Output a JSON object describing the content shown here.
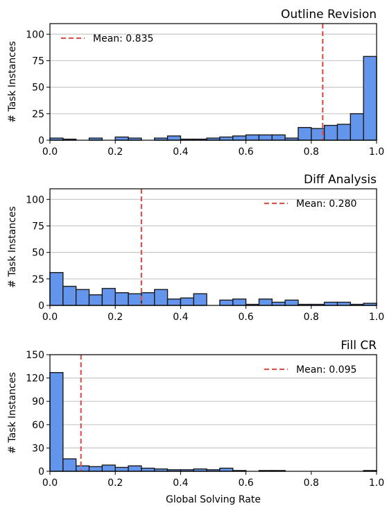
{
  "chart_data": [
    {
      "type": "bar",
      "title": "Outline Revision",
      "ylabel": "# Task Instances",
      "xlabel": "",
      "xlim": [
        0,
        1
      ],
      "ylim": [
        0,
        110
      ],
      "xticks": [
        "0.0",
        "0.2",
        "0.4",
        "0.6",
        "0.8",
        "1.0"
      ],
      "yticks": [
        0,
        25,
        50,
        75,
        100
      ],
      "bin_width": 0.04,
      "values": [
        2,
        1,
        0,
        2,
        0,
        3,
        2,
        0,
        2,
        4,
        1,
        1,
        2,
        3,
        4,
        5,
        5,
        5,
        2,
        12,
        11,
        14,
        15,
        25,
        79
      ],
      "mean": 0.835,
      "legend": "Mean: 0.835",
      "legend_position": "top-left",
      "grid": "y"
    },
    {
      "type": "bar",
      "title": "Diff Analysis",
      "ylabel": "# Task Instances",
      "xlabel": "",
      "xlim": [
        0,
        1
      ],
      "ylim": [
        0,
        110
      ],
      "xticks": [
        "0.0",
        "0.2",
        "0.4",
        "0.6",
        "0.8",
        "1.0"
      ],
      "yticks": [
        0,
        25,
        50,
        75,
        100
      ],
      "bin_width": 0.04,
      "values": [
        31,
        18,
        15,
        10,
        16,
        12,
        11,
        12,
        15,
        6,
        7,
        11,
        0,
        5,
        6,
        1,
        6,
        3,
        5,
        1,
        1,
        3,
        3,
        1,
        2
      ],
      "mean": 0.28,
      "legend": "Mean: 0.280",
      "legend_position": "top-right",
      "grid": "y"
    },
    {
      "type": "bar",
      "title": "Fill CR",
      "ylabel": "# Task Instances",
      "xlabel": "Global Solving Rate",
      "xlim": [
        0,
        1
      ],
      "ylim": [
        0,
        150
      ],
      "xticks": [
        "0.0",
        "0.2",
        "0.4",
        "0.6",
        "0.8",
        "1.0"
      ],
      "yticks": [
        0,
        30,
        60,
        90,
        120,
        150
      ],
      "bin_width": 0.04,
      "values": [
        127,
        16,
        7,
        6,
        8,
        5,
        7,
        4,
        3,
        2,
        2,
        3,
        2,
        4,
        1,
        0,
        1,
        1,
        0,
        0,
        0,
        0,
        0,
        0,
        1
      ],
      "mean": 0.095,
      "legend": "Mean: 0.095",
      "legend_position": "top-right",
      "grid": "y"
    }
  ],
  "colors": {
    "bar_fill": "#6495ed",
    "bar_edge": "#1a1a1a",
    "mean_line": "#d9534f",
    "grid": "#c8c8c8"
  }
}
